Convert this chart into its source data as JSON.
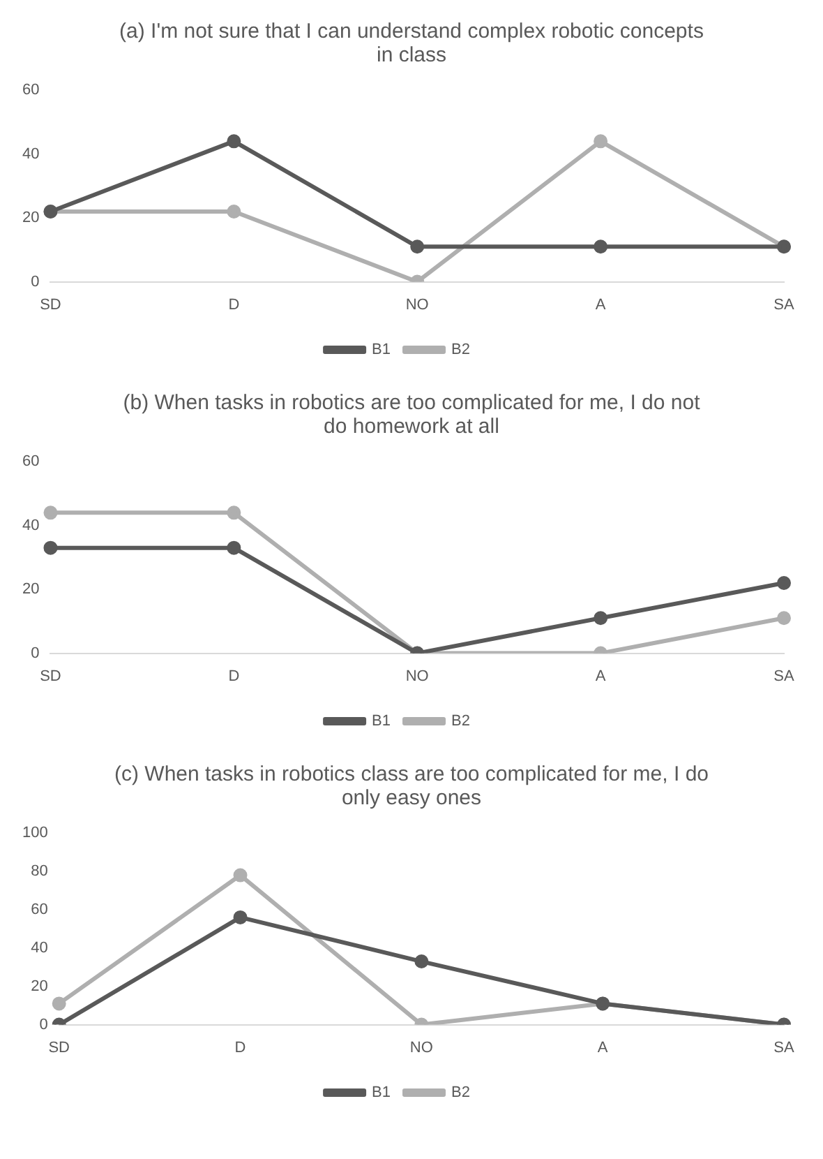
{
  "chart_data": [
    {
      "type": "line",
      "title": "(a) I'm not sure that I can understand complex robotic concepts in class",
      "categories": [
        "SD",
        "D",
        "NO",
        "A",
        "SA"
      ],
      "ylim": [
        0,
        60
      ],
      "yticks": [
        0,
        20,
        40,
        60
      ],
      "legend": "bottom",
      "marker": "circle",
      "series": [
        {
          "name": "B1",
          "color": "#595959",
          "values": [
            22,
            44,
            11,
            11,
            11
          ]
        },
        {
          "name": "B2",
          "color": "#afafaf",
          "values": [
            22,
            22,
            0,
            44,
            11
          ]
        }
      ]
    },
    {
      "type": "line",
      "title": "(b) When tasks in robotics are too complicated for me, I do not do homework at all",
      "categories": [
        "SD",
        "D",
        "NO",
        "A",
        "SA"
      ],
      "ylim": [
        0,
        60
      ],
      "yticks": [
        0,
        20,
        40,
        60
      ],
      "legend": "bottom",
      "marker": "circle",
      "series": [
        {
          "name": "B1",
          "color": "#595959",
          "values": [
            33,
            33,
            0,
            11,
            22
          ]
        },
        {
          "name": "B2",
          "color": "#afafaf",
          "values": [
            44,
            44,
            0,
            0,
            11
          ]
        }
      ]
    },
    {
      "type": "line",
      "title": "(c) When tasks  in robotics class are too complicated for me, I do only easy ones",
      "categories": [
        "SD",
        "D",
        "NO",
        "A",
        "SA"
      ],
      "ylim": [
        0,
        100
      ],
      "yticks": [
        0,
        20,
        40,
        60,
        80,
        100
      ],
      "legend": "bottom",
      "marker": "circle",
      "series": [
        {
          "name": "B1",
          "color": "#595959",
          "values": [
            0,
            56,
            33,
            11,
            0
          ]
        },
        {
          "name": "B2",
          "color": "#afafaf",
          "values": [
            11,
            78,
            0,
            11,
            0
          ]
        }
      ]
    }
  ]
}
